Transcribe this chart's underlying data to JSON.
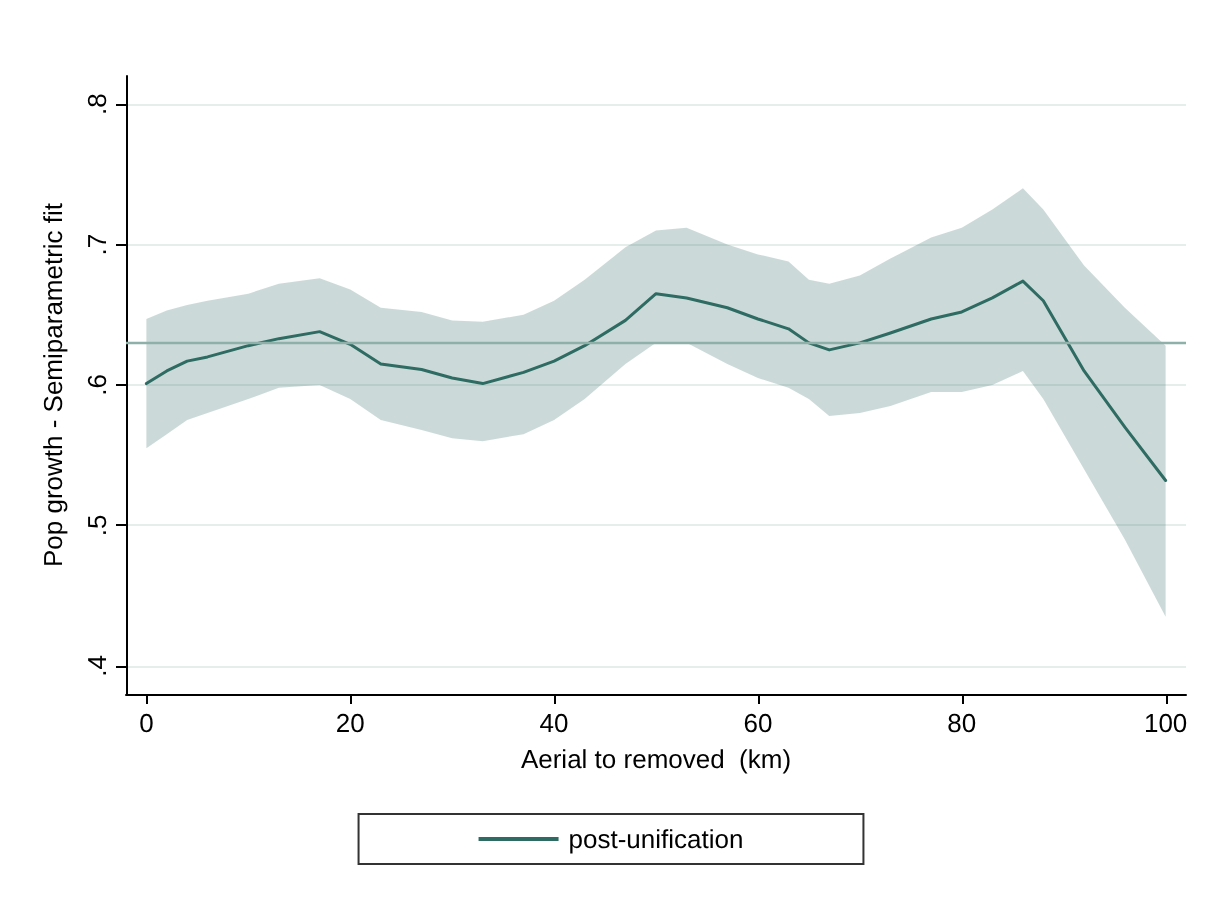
{
  "chart_data": {
    "type": "line",
    "xlabel": "Aerial to removed  (km)",
    "ylabel": "Pop growth - Semiparametric fit",
    "xlim": [
      -2,
      102
    ],
    "xticks": [
      0,
      20,
      40,
      60,
      80,
      100
    ],
    "ylim": [
      0.38,
      0.82
    ],
    "yticks": [
      {
        "value": 0.4,
        "label": ".4"
      },
      {
        "value": 0.5,
        "label": ".5"
      },
      {
        "value": 0.6,
        "label": ".6"
      },
      {
        "value": 0.7,
        "label": ".7"
      },
      {
        "value": 0.8,
        "label": ".8"
      }
    ],
    "grid": "y",
    "legend": "bottom",
    "marker": "none",
    "line_style": "solid",
    "ref_lines": [
      {
        "axis": "y",
        "value": 0.63,
        "color": "#8fb0a8"
      }
    ],
    "series": [
      {
        "name": "post-unification",
        "color": "#2e6b62",
        "x": [
          0,
          2,
          4,
          6,
          10,
          13,
          17,
          20,
          23,
          27,
          30,
          33,
          37,
          40,
          43,
          47,
          50,
          53,
          57,
          60,
          63,
          65,
          67,
          70,
          73,
          77,
          80,
          83,
          86,
          88,
          92,
          96,
          100
        ],
        "values": [
          0.601,
          0.61,
          0.617,
          0.62,
          0.628,
          0.633,
          0.638,
          0.629,
          0.615,
          0.611,
          0.605,
          0.601,
          0.609,
          0.617,
          0.628,
          0.646,
          0.665,
          0.662,
          0.655,
          0.647,
          0.64,
          0.63,
          0.625,
          0.63,
          0.637,
          0.647,
          0.652,
          0.662,
          0.674,
          0.66,
          0.61,
          0.57,
          0.532
        ],
        "lower": [
          0.555,
          0.565,
          0.575,
          0.58,
          0.59,
          0.598,
          0.6,
          0.59,
          0.575,
          0.568,
          0.562,
          0.56,
          0.565,
          0.575,
          0.59,
          0.615,
          0.63,
          0.63,
          0.615,
          0.605,
          0.598,
          0.59,
          0.578,
          0.58,
          0.585,
          0.595,
          0.595,
          0.6,
          0.61,
          0.59,
          0.54,
          0.49,
          0.435
        ],
        "upper": [
          0.647,
          0.653,
          0.657,
          0.66,
          0.665,
          0.672,
          0.676,
          0.668,
          0.655,
          0.652,
          0.646,
          0.645,
          0.65,
          0.66,
          0.675,
          0.698,
          0.71,
          0.712,
          0.7,
          0.693,
          0.688,
          0.675,
          0.672,
          0.678,
          0.69,
          0.705,
          0.712,
          0.725,
          0.74,
          0.725,
          0.685,
          0.655,
          0.628
        ]
      }
    ]
  }
}
